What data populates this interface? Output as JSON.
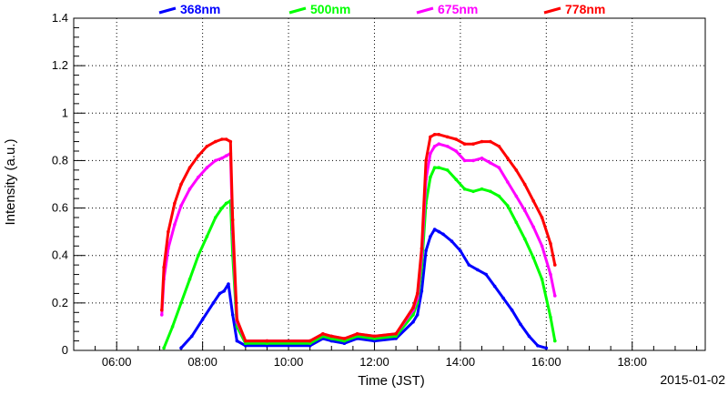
{
  "chart_data": {
    "type": "scatter",
    "title": "",
    "xlabel": "Time (JST)",
    "ylabel": "Intensity (a.u.)",
    "date_label": "2015-01-02",
    "x_unit": "hours (JST)",
    "xlim": [
      5.0,
      19.7
    ],
    "ylim": [
      0,
      1.4
    ],
    "x_ticks": [
      {
        "value": 6,
        "label": "06:00"
      },
      {
        "value": 8,
        "label": "08:00"
      },
      {
        "value": 10,
        "label": "10:00"
      },
      {
        "value": 12,
        "label": "12:00"
      },
      {
        "value": 14,
        "label": "14:00"
      },
      {
        "value": 16,
        "label": "16:00"
      },
      {
        "value": 18,
        "label": "18:00"
      }
    ],
    "y_ticks": [
      {
        "value": 0,
        "label": "0"
      },
      {
        "value": 0.2,
        "label": "0.2"
      },
      {
        "value": 0.4,
        "label": "0.4"
      },
      {
        "value": 0.6,
        "label": "0.6"
      },
      {
        "value": 0.8,
        "label": "0.8"
      },
      {
        "value": 1.0,
        "label": "1"
      },
      {
        "value": 1.2,
        "label": "1.2"
      },
      {
        "value": 1.4,
        "label": "1.4"
      }
    ],
    "grid": true,
    "legend_position": "top",
    "series": [
      {
        "name": "368nm",
        "color": "#0000ff",
        "x": [
          7.5,
          7.75,
          8.0,
          8.25,
          8.4,
          8.5,
          8.6,
          8.7,
          8.8,
          9.0,
          9.5,
          10.5,
          10.8,
          11.0,
          11.3,
          11.6,
          12.0,
          12.5,
          12.9,
          13.0,
          13.1,
          13.2,
          13.3,
          13.4,
          13.5,
          13.6,
          13.8,
          14.0,
          14.2,
          14.4,
          14.6,
          14.8,
          15.0,
          15.2,
          15.4,
          15.6,
          15.8,
          16.0
        ],
        "y": [
          0.01,
          0.06,
          0.13,
          0.2,
          0.24,
          0.25,
          0.28,
          0.15,
          0.04,
          0.02,
          0.02,
          0.02,
          0.05,
          0.04,
          0.03,
          0.05,
          0.04,
          0.05,
          0.12,
          0.15,
          0.25,
          0.42,
          0.48,
          0.51,
          0.5,
          0.49,
          0.46,
          0.42,
          0.36,
          0.34,
          0.32,
          0.27,
          0.22,
          0.17,
          0.11,
          0.06,
          0.02,
          0.01
        ]
      },
      {
        "name": "500nm",
        "color": "#00ff00",
        "x": [
          7.1,
          7.3,
          7.5,
          7.7,
          7.9,
          8.1,
          8.3,
          8.45,
          8.55,
          8.65,
          8.7,
          8.8,
          9.0,
          9.5,
          10.5,
          10.8,
          11.0,
          11.3,
          11.6,
          12.0,
          12.5,
          12.9,
          13.0,
          13.1,
          13.2,
          13.3,
          13.4,
          13.5,
          13.7,
          13.9,
          14.1,
          14.3,
          14.5,
          14.7,
          14.9,
          15.1,
          15.3,
          15.5,
          15.7,
          15.9,
          16.1,
          16.2
        ],
        "y": [
          0.01,
          0.1,
          0.2,
          0.3,
          0.4,
          0.48,
          0.56,
          0.6,
          0.62,
          0.63,
          0.4,
          0.1,
          0.03,
          0.03,
          0.03,
          0.06,
          0.05,
          0.04,
          0.06,
          0.05,
          0.06,
          0.15,
          0.2,
          0.35,
          0.62,
          0.73,
          0.77,
          0.77,
          0.76,
          0.72,
          0.68,
          0.67,
          0.68,
          0.67,
          0.65,
          0.61,
          0.54,
          0.47,
          0.39,
          0.3,
          0.14,
          0.04
        ]
      },
      {
        "name": "675nm",
        "color": "#ff00ff",
        "x": [
          7.05,
          7.1,
          7.2,
          7.35,
          7.5,
          7.7,
          7.9,
          8.1,
          8.3,
          8.45,
          8.55,
          8.65,
          8.7,
          8.8,
          9.0,
          9.5,
          10.5,
          10.8,
          11.0,
          11.3,
          11.6,
          12.0,
          12.5,
          12.9,
          13.0,
          13.1,
          13.2,
          13.3,
          13.4,
          13.5,
          13.7,
          13.9,
          14.1,
          14.3,
          14.5,
          14.7,
          14.9,
          15.1,
          15.3,
          15.5,
          15.7,
          15.9,
          16.1,
          16.2
        ],
        "y": [
          0.15,
          0.3,
          0.43,
          0.53,
          0.61,
          0.68,
          0.73,
          0.77,
          0.8,
          0.81,
          0.82,
          0.83,
          0.5,
          0.12,
          0.04,
          0.04,
          0.04,
          0.07,
          0.06,
          0.05,
          0.07,
          0.06,
          0.07,
          0.17,
          0.22,
          0.4,
          0.72,
          0.83,
          0.86,
          0.87,
          0.86,
          0.84,
          0.8,
          0.8,
          0.81,
          0.79,
          0.77,
          0.71,
          0.65,
          0.59,
          0.52,
          0.44,
          0.32,
          0.23
        ]
      },
      {
        "name": "778nm",
        "color": "#ff0000",
        "x": [
          7.05,
          7.1,
          7.2,
          7.35,
          7.5,
          7.7,
          7.9,
          8.1,
          8.3,
          8.45,
          8.55,
          8.65,
          8.7,
          8.8,
          9.0,
          9.5,
          10.5,
          10.8,
          11.0,
          11.3,
          11.6,
          12.0,
          12.5,
          12.9,
          13.0,
          13.1,
          13.2,
          13.3,
          13.4,
          13.5,
          13.7,
          13.9,
          14.1,
          14.3,
          14.5,
          14.7,
          14.9,
          15.1,
          15.3,
          15.5,
          15.7,
          15.9,
          16.1,
          16.2
        ],
        "y": [
          0.17,
          0.35,
          0.5,
          0.62,
          0.7,
          0.77,
          0.82,
          0.86,
          0.88,
          0.89,
          0.89,
          0.88,
          0.55,
          0.13,
          0.04,
          0.04,
          0.04,
          0.07,
          0.06,
          0.05,
          0.07,
          0.06,
          0.07,
          0.18,
          0.24,
          0.43,
          0.8,
          0.9,
          0.91,
          0.91,
          0.9,
          0.89,
          0.87,
          0.87,
          0.88,
          0.88,
          0.86,
          0.81,
          0.76,
          0.7,
          0.63,
          0.56,
          0.45,
          0.36
        ]
      }
    ]
  }
}
